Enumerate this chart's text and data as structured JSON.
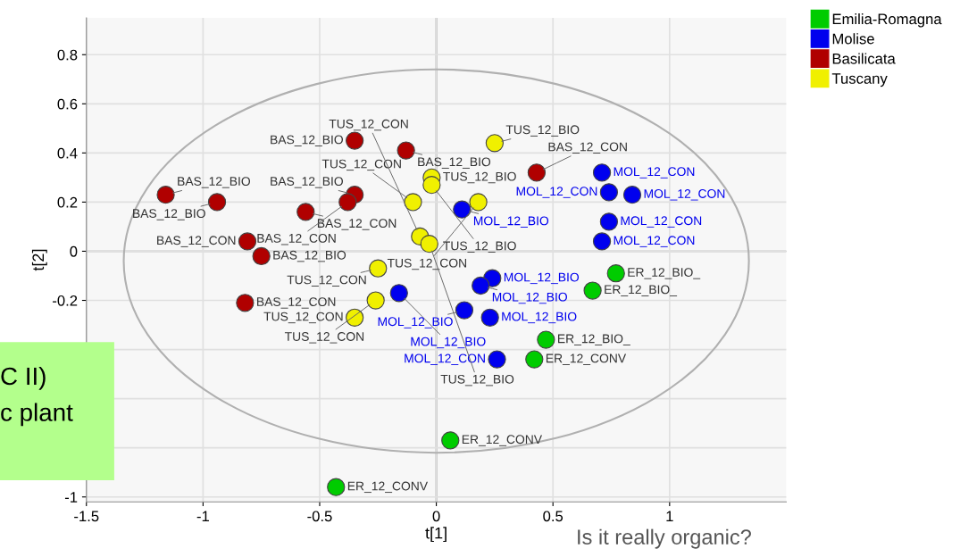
{
  "chart_data": {
    "type": "scatter",
    "xlabel": "t[1]",
    "ylabel": "t[2]",
    "xlim": [
      -1.5,
      1.5
    ],
    "ylim": [
      -1.02,
      0.95
    ],
    "xticks": [
      -1.5,
      -1,
      -0.5,
      0,
      0.5,
      1
    ],
    "yticks": [
      -1,
      {
        "value": -0.8,
        "label": null
      },
      {
        "value": -0.6,
        "label": null
      },
      {
        "value": -0.4,
        "label": null
      },
      -0.2,
      0,
      0.2,
      0.4,
      0.6,
      0.8
    ],
    "grid": true,
    "legend": "top right",
    "marker": "circle",
    "ref_lines": [
      {
        "axis": "x",
        "value": 0,
        "color": "#777777"
      },
      {
        "axis": "y",
        "value": 0,
        "color": "#999999"
      }
    ],
    "series": [
      {
        "name": "Emilia-Romagna",
        "color": "#00cc00",
        "x": [
          0.77,
          0.67,
          0.47,
          0.42,
          0.06,
          -0.43
        ],
        "values": [
          -0.09,
          -0.16,
          -0.36,
          -0.44,
          -0.77,
          -0.96
        ]
      },
      {
        "name": "Molise",
        "color": "#0000ee",
        "x": [
          0.71,
          0.74,
          0.84,
          0.74,
          0.71,
          0.11,
          -0.16,
          0.24,
          0.19,
          0.12,
          0.23,
          0.26
        ],
        "values": [
          0.32,
          0.24,
          0.23,
          0.12,
          0.04,
          0.17,
          -0.17,
          -0.11,
          -0.14,
          -0.24,
          -0.27,
          -0.44
        ]
      },
      {
        "name": "Basilicata",
        "color": "#b00000",
        "x": [
          -0.35,
          -0.13,
          -1.16,
          -0.94,
          -0.56,
          -0.35,
          -0.38,
          -0.81,
          -0.75,
          -0.82,
          0.43
        ],
        "values": [
          0.45,
          0.41,
          0.23,
          0.2,
          0.16,
          0.23,
          0.2,
          0.04,
          -0.02,
          -0.21,
          0.32
        ]
      },
      {
        "name": "Tuscany",
        "color": "#f0f000",
        "x": [
          0.25,
          -0.02,
          -0.02,
          -0.1,
          0.18,
          -0.07,
          -0.03,
          -0.25,
          -0.26,
          -0.35
        ],
        "values": [
          0.44,
          0.3,
          0.27,
          0.2,
          0.2,
          0.06,
          0.03,
          -0.07,
          -0.2,
          -0.27
        ]
      }
    ],
    "annotations": [
      {
        "text": "ER_12_BIO_",
        "x": 0.77,
        "y": -0.09
      },
      {
        "text": "ER_12_BIO_",
        "x": 0.67,
        "y": -0.16
      },
      {
        "text": "ER_12_BIO_",
        "x": 0.47,
        "y": -0.36
      },
      {
        "text": "ER_12_CONV",
        "x": 0.42,
        "y": -0.44
      },
      {
        "text": "ER_12_CONV",
        "x": 0.06,
        "y": -0.77
      },
      {
        "text": "ER_12_CONV",
        "x": -0.43,
        "y": -0.96
      },
      {
        "text": "MOL_12_CON",
        "x": 0.71,
        "y": 0.32
      },
      {
        "text": "MOL_12_CON",
        "x": 0.74,
        "y": 0.24
      },
      {
        "text": "MOL_12_CON",
        "x": 0.84,
        "y": 0.23
      },
      {
        "text": "MOL_12_CON",
        "x": 0.74,
        "y": 0.12
      },
      {
        "text": "MOL_12_CON",
        "x": 0.71,
        "y": 0.04
      },
      {
        "text": "MOL_12_BIO",
        "x": 0.11,
        "y": 0.17
      },
      {
        "text": "MOL_12_BIO",
        "x": -0.16,
        "y": -0.17
      },
      {
        "text": "MOL_12_BIO",
        "x": 0.24,
        "y": -0.11
      },
      {
        "text": "MOL_12_BIO",
        "x": 0.19,
        "y": -0.14
      },
      {
        "text": "MOL_12_BIO",
        "x": 0.12,
        "y": -0.24
      },
      {
        "text": "MOL_12_BIO",
        "x": 0.23,
        "y": -0.27
      },
      {
        "text": "MOL_12_CON",
        "x": 0.26,
        "y": -0.44
      },
      {
        "text": "BAS_12_BIO",
        "x": -0.35,
        "y": 0.45
      },
      {
        "text": "BAS_12_BIO",
        "x": -0.13,
        "y": 0.41
      },
      {
        "text": "BAS_12_BIO",
        "x": -1.16,
        "y": 0.23
      },
      {
        "text": "BAS_12_BIO",
        "x": -0.94,
        "y": 0.2
      },
      {
        "text": "BAS_12_CON",
        "x": -0.56,
        "y": 0.16
      },
      {
        "text": "BAS_12_BIO",
        "x": -0.35,
        "y": 0.23
      },
      {
        "text": "BAS_12_CON",
        "x": -0.38,
        "y": 0.2
      },
      {
        "text": "BAS_12_CON",
        "x": -0.81,
        "y": 0.04
      },
      {
        "text": "BAS_12_BIO",
        "x": -0.75,
        "y": -0.02
      },
      {
        "text": "BAS_12_CON",
        "x": -0.82,
        "y": -0.21
      },
      {
        "text": "BAS_12_CON",
        "x": 0.43,
        "y": 0.32
      },
      {
        "text": "TUS_12_BIO",
        "x": 0.25,
        "y": 0.44
      },
      {
        "text": "TUS_12_BIO",
        "x": -0.02,
        "y": 0.3
      },
      {
        "text": "TUS_12_BIO",
        "x": -0.02,
        "y": 0.27
      },
      {
        "text": "TUS_12_CON",
        "x": -0.1,
        "y": 0.2
      },
      {
        "text": "TUS_12_CON",
        "x": 0.18,
        "y": 0.2
      },
      {
        "text": "TUS_12_CON",
        "x": -0.07,
        "y": 0.06
      },
      {
        "text": "TUS_12_BIO",
        "x": -0.03,
        "y": 0.03
      },
      {
        "text": "TUS_12_CON",
        "x": -0.25,
        "y": -0.07
      },
      {
        "text": "TUS_12_CON",
        "x": -0.26,
        "y": -0.2
      },
      {
        "text": "TUS_12_CON",
        "x": -0.35,
        "y": -0.27
      },
      "C II)",
      "c plant",
      "Is it really organic?"
    ]
  }
}
